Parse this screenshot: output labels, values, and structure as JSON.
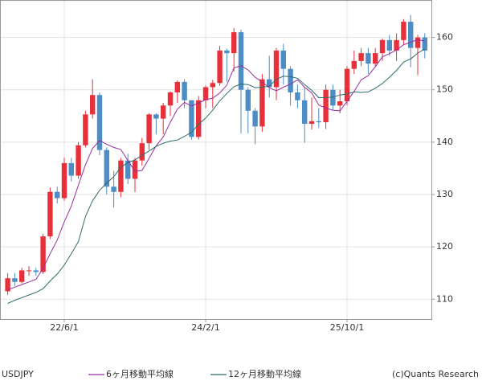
{
  "chart_data": {
    "type": "candlestick",
    "title": "USDJPY",
    "credit": "(c)Quants Research",
    "categories": [
      null,
      null,
      null,
      null,
      null,
      null,
      null,
      null,
      "22/6/1",
      null,
      null,
      null,
      null,
      null,
      null,
      null,
      null,
      null,
      null,
      null,
      null,
      null,
      null,
      null,
      null,
      null,
      null,
      null,
      "24/2/1",
      null,
      null,
      null,
      null,
      null,
      null,
      null,
      null,
      null,
      null,
      null,
      null,
      null,
      null,
      null,
      null,
      null,
      null,
      null,
      "25/10/1",
      null,
      null,
      null,
      null,
      null,
      null,
      null,
      null,
      null,
      null,
      null
    ],
    "open": [
      111.5,
      114,
      113.3,
      115.5,
      115.5,
      115.2,
      122,
      130.5,
      129.3,
      136,
      133.6,
      139.4,
      145.3,
      149,
      138.5,
      131.5,
      130.5,
      136.5,
      133,
      136.5,
      139.8,
      145.3,
      144.5,
      147,
      149.5,
      151.5,
      148,
      141,
      148,
      150.5,
      151.3,
      157.5,
      157,
      161,
      150,
      146,
      143,
      152,
      150.5,
      157.5,
      154,
      149.5,
      148,
      143.5,
      144,
      143.8,
      150,
      147,
      147.8,
      154,
      155.5,
      157,
      155,
      157,
      159.5,
      157.5,
      159.5,
      163,
      158,
      160
    ],
    "high": [
      115,
      115,
      116,
      116.3,
      116,
      122.5,
      131.3,
      131.5,
      137,
      137,
      140,
      146,
      152,
      149.5,
      139,
      134.5,
      137,
      137.8,
      137,
      140.8,
      145.5,
      145.5,
      147.5,
      149.7,
      151.8,
      152,
      148,
      148.8,
      150.8,
      151.9,
      158.4,
      157.8,
      161.8,
      161.5,
      150.5,
      146.5,
      153,
      156.5,
      158,
      158.8,
      154.5,
      151,
      150.5,
      148.5,
      146.5,
      151,
      151,
      150,
      154.5,
      157.5,
      158,
      158,
      158,
      159.8,
      160.5,
      160.8,
      163.5,
      164.3,
      160.5,
      160.8
    ],
    "low": [
      110.8,
      112.5,
      113,
      114.5,
      114.5,
      114.8,
      121.5,
      128.3,
      128.8,
      132.5,
      133,
      139,
      144.5,
      137.5,
      130,
      127.5,
      129.5,
      132,
      130.5,
      135.5,
      138.5,
      141.5,
      141.5,
      145,
      147.5,
      146.5,
      140.5,
      140.5,
      146.5,
      146.5,
      150.8,
      151.5,
      153.5,
      141.7,
      141.7,
      139.6,
      142,
      148.5,
      148,
      151,
      147,
      146.5,
      139.9,
      142.4,
      142.7,
      142.5,
      146,
      145.5,
      147,
      153,
      154.5,
      153,
      154.5,
      155.5,
      156.5,
      155.5,
      158.5,
      154.3,
      152.8,
      156
    ],
    "close": [
      114,
      113.3,
      115.5,
      115.5,
      115.2,
      122,
      130.5,
      129.3,
      136,
      133.6,
      139.4,
      145.3,
      149,
      138.5,
      131.5,
      130.5,
      136.5,
      133,
      136.5,
      139.8,
      145.3,
      144.5,
      147,
      149.5,
      151.5,
      148,
      141,
      148,
      150.5,
      151.3,
      157.5,
      157,
      161,
      150,
      146,
      143,
      152,
      150.5,
      157.5,
      154,
      149.5,
      148,
      143.5,
      144,
      143.8,
      150,
      147,
      147.8,
      154,
      155.5,
      157,
      155,
      157,
      159.5,
      157.5,
      159.5,
      163,
      158,
      160,
      157.5
    ],
    "up_color": "#e8303a",
    "down_color": "#4d8cc4",
    "series": [
      {
        "name": "6ヶ月移動平均線",
        "color": "#9b2fa0",
        "values": [
          111.8,
          112.3,
          112.8,
          113.3,
          113.8,
          115.9,
          118.7,
          121.3,
          124.8,
          127.8,
          131.8,
          135.7,
          138.8,
          140.3,
          139.6,
          139.0,
          138.6,
          136.5,
          134.4,
          134.6,
          136.9,
          139.3,
          141.0,
          143.8,
          146.3,
          147.6,
          146.9,
          147.5,
          148.1,
          148.4,
          149.4,
          150.9,
          154.2,
          154.6,
          153.8,
          152.4,
          151.5,
          150.4,
          149.8,
          150.5,
          151.1,
          151.9,
          150.5,
          149.4,
          147.1,
          146.5,
          146.1,
          146.0,
          147.8,
          149.7,
          151.9,
          152.7,
          154.4,
          156.3,
          156.9,
          157.6,
          158.6,
          159.1,
          159.6,
          159.3
        ]
      },
      {
        "name": "12ヶ月移動平均線",
        "color": "#2f6b6b",
        "values": [
          109.2,
          109.8,
          110.3,
          110.8,
          111.3,
          112,
          113.5,
          114.8,
          116.5,
          118.7,
          121,
          125.8,
          128.8,
          130.8,
          132.2,
          133.4,
          135.2,
          136.1,
          136.6,
          137.5,
          138.3,
          139.2,
          139.8,
          140.2,
          140.4,
          141.1,
          141.9,
          143.4,
          144.6,
          146.1,
          147.9,
          149.3,
          150.6,
          151.1,
          151.0,
          150.4,
          150.5,
          150.7,
          152.0,
          152.6,
          152.5,
          152.2,
          151.0,
          149.9,
          148.5,
          148.5,
          148.6,
          149.0,
          149.2,
          149.6,
          149.5,
          149.6,
          150.3,
          151.2,
          152.4,
          153.7,
          155.3,
          155.9,
          157.0,
          157.8
        ]
      }
    ],
    "ylim": [
      106.2,
      167.0
    ],
    "yticks": [
      110,
      120,
      130,
      140,
      150,
      160
    ],
    "grid": true
  }
}
